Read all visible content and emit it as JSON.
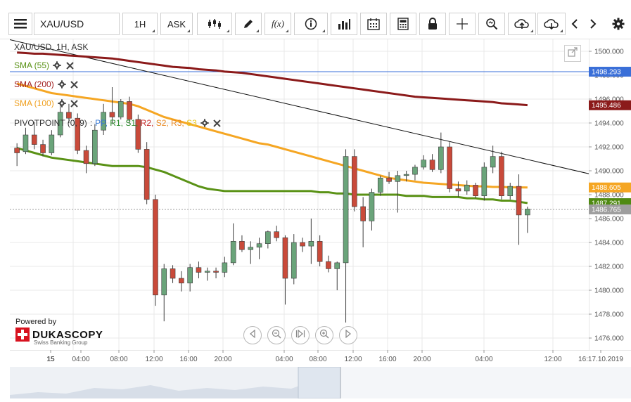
{
  "toolbar": {
    "menu_icon": "hamburger-icon",
    "instrument": "XAU/USD",
    "timeframe": "1H",
    "side": "ASK",
    "tools": [
      {
        "name": "chart-type-icon"
      },
      {
        "name": "draw-pencil-icon"
      },
      {
        "name": "function-icon",
        "label": "f(x)"
      },
      {
        "name": "info-icon"
      },
      {
        "name": "volume-bars-icon"
      },
      {
        "name": "calendar-icon"
      },
      {
        "name": "calculator-icon"
      },
      {
        "name": "lock-icon"
      },
      {
        "name": "crosshair-icon"
      },
      {
        "name": "zoom-search-icon"
      },
      {
        "name": "cloud-upload-icon"
      },
      {
        "name": "cloud-download-icon"
      },
      {
        "name": "arrow-left-icon"
      },
      {
        "name": "arrow-right-icon"
      },
      {
        "name": "settings-gear-icon"
      }
    ]
  },
  "legend": {
    "title": "XAU/USD, 1H, ASK",
    "sma55": "SMA (55)",
    "sma200": "SMA (200)",
    "sma100": "SMA (100)",
    "pivot_prefix": "PIVOTPOINT (0, 9)",
    "pivot_items": [
      {
        "label": "PP",
        "color": "#3a7bd5"
      },
      {
        "label": "R1",
        "color": "#2e8b2e"
      },
      {
        "label": "S1",
        "color": "#2e8b2e"
      },
      {
        "label": "R2",
        "color": "#c62828"
      },
      {
        "label": "S2",
        "color": "#e8871e"
      },
      {
        "label": "R3",
        "color": "#e8871e"
      },
      {
        "label": "S3",
        "color": "#e8c51e"
      }
    ],
    "colors": {
      "sma55": "#5a9216",
      "sma200": "#8b1a1a",
      "sma100": "#f5a623"
    }
  },
  "price_axis": {
    "ticks": [
      "1500.000",
      "1498.000",
      "1496.000",
      "1494.000",
      "1492.000",
      "1490.000",
      "1488.000",
      "1486.000",
      "1484.000",
      "1482.000",
      "1480.000",
      "1478.000",
      "1476.000"
    ],
    "tags": [
      {
        "label": "1498.293",
        "color": "#3a6fd8"
      },
      {
        "label": "1495.486",
        "color": "#8b1a1a"
      },
      {
        "label": "1488.605",
        "color": "#f5a623"
      },
      {
        "label": "1487.291",
        "color": "#4f8a12"
      },
      {
        "label": "1486.765",
        "color": "#9e9e9e"
      }
    ]
  },
  "time_axis": {
    "labels": [
      "15",
      "04:00",
      "08:00",
      "12:00",
      "16:00",
      "20:00",
      "04:00",
      "08:00",
      "12:00",
      "16:00",
      "20:00",
      "04:00",
      "12:00",
      "16:17.10.2019"
    ]
  },
  "branding": {
    "powered": "Powered by",
    "name": "DUKASCOPY",
    "tagline": "Swiss Banking Group"
  },
  "nav_controls": [
    {
      "name": "scroll-left-icon"
    },
    {
      "name": "zoom-out-icon"
    },
    {
      "name": "reset-view-icon"
    },
    {
      "name": "zoom-in-icon"
    },
    {
      "name": "scroll-right-icon"
    }
  ],
  "chart_data": {
    "type": "candlestick",
    "title": "XAU/USD, 1H, ASK",
    "ylim": [
      1475.0,
      1501.0
    ],
    "colors": {
      "up": "#6aa47a",
      "down": "#c94a3a",
      "grid": "#e8e8e8",
      "trendline": "#111111"
    },
    "candles": [
      {
        "o": 1491.9,
        "h": 1492.3,
        "l": 1490.4,
        "c": 1491.5
      },
      {
        "o": 1491.6,
        "h": 1493.6,
        "l": 1491.4,
        "c": 1493.0
      },
      {
        "o": 1493.0,
        "h": 1494.1,
        "l": 1491.8,
        "c": 1492.2
      },
      {
        "o": 1492.2,
        "h": 1492.6,
        "l": 1491.2,
        "c": 1491.5
      },
      {
        "o": 1491.5,
        "h": 1493.4,
        "l": 1491.3,
        "c": 1493.0
      },
      {
        "o": 1493.0,
        "h": 1495.6,
        "l": 1492.8,
        "c": 1494.9
      },
      {
        "o": 1494.9,
        "h": 1495.6,
        "l": 1494.0,
        "c": 1494.4
      },
      {
        "o": 1494.4,
        "h": 1494.8,
        "l": 1491.4,
        "c": 1491.7
      },
      {
        "o": 1491.7,
        "h": 1492.1,
        "l": 1489.8,
        "c": 1490.6
      },
      {
        "o": 1490.6,
        "h": 1493.9,
        "l": 1490.4,
        "c": 1493.4
      },
      {
        "o": 1493.4,
        "h": 1495.6,
        "l": 1493.0,
        "c": 1494.9
      },
      {
        "o": 1494.9,
        "h": 1497.0,
        "l": 1493.9,
        "c": 1494.5
      },
      {
        "o": 1494.5,
        "h": 1496.0,
        "l": 1494.3,
        "c": 1495.8
      },
      {
        "o": 1495.8,
        "h": 1496.2,
        "l": 1494.0,
        "c": 1494.3
      },
      {
        "o": 1494.3,
        "h": 1494.7,
        "l": 1491.5,
        "c": 1491.8
      },
      {
        "o": 1491.8,
        "h": 1492.4,
        "l": 1487.2,
        "c": 1487.6
      },
      {
        "o": 1487.6,
        "h": 1488.0,
        "l": 1478.7,
        "c": 1479.6
      },
      {
        "o": 1479.6,
        "h": 1482.2,
        "l": 1477.4,
        "c": 1481.8
      },
      {
        "o": 1481.8,
        "h": 1482.1,
        "l": 1480.6,
        "c": 1481.0
      },
      {
        "o": 1481.0,
        "h": 1481.6,
        "l": 1479.9,
        "c": 1480.6
      },
      {
        "o": 1480.6,
        "h": 1482.2,
        "l": 1479.9,
        "c": 1481.9
      },
      {
        "o": 1481.9,
        "h": 1482.4,
        "l": 1481.0,
        "c": 1481.5
      },
      {
        "o": 1481.5,
        "h": 1481.9,
        "l": 1480.8,
        "c": 1481.6
      },
      {
        "o": 1481.6,
        "h": 1481.9,
        "l": 1481.0,
        "c": 1481.5
      },
      {
        "o": 1481.5,
        "h": 1482.8,
        "l": 1481.1,
        "c": 1482.3
      },
      {
        "o": 1482.3,
        "h": 1485.6,
        "l": 1482.1,
        "c": 1484.1
      },
      {
        "o": 1484.1,
        "h": 1484.6,
        "l": 1483.2,
        "c": 1483.4
      },
      {
        "o": 1483.4,
        "h": 1484.1,
        "l": 1482.2,
        "c": 1483.6
      },
      {
        "o": 1483.6,
        "h": 1484.4,
        "l": 1482.6,
        "c": 1483.9
      },
      {
        "o": 1483.9,
        "h": 1485.0,
        "l": 1483.5,
        "c": 1484.9
      },
      {
        "o": 1484.9,
        "h": 1485.4,
        "l": 1484.1,
        "c": 1484.4
      },
      {
        "o": 1484.4,
        "h": 1484.6,
        "l": 1478.8,
        "c": 1481.0
      },
      {
        "o": 1481.0,
        "h": 1484.7,
        "l": 1480.5,
        "c": 1484.0
      },
      {
        "o": 1484.0,
        "h": 1484.4,
        "l": 1483.2,
        "c": 1483.7
      },
      {
        "o": 1483.7,
        "h": 1486.0,
        "l": 1482.2,
        "c": 1484.1
      },
      {
        "o": 1484.1,
        "h": 1484.6,
        "l": 1482.0,
        "c": 1482.4
      },
      {
        "o": 1482.4,
        "h": 1482.9,
        "l": 1481.5,
        "c": 1481.8
      },
      {
        "o": 1481.8,
        "h": 1482.4,
        "l": 1480.0,
        "c": 1482.3
      },
      {
        "o": 1482.3,
        "h": 1491.8,
        "l": 1477.3,
        "c": 1491.2
      },
      {
        "o": 1491.2,
        "h": 1491.8,
        "l": 1486.6,
        "c": 1487.0
      },
      {
        "o": 1487.0,
        "h": 1487.8,
        "l": 1483.6,
        "c": 1485.8
      },
      {
        "o": 1485.8,
        "h": 1488.5,
        "l": 1485.0,
        "c": 1488.2
      },
      {
        "o": 1488.2,
        "h": 1489.6,
        "l": 1487.9,
        "c": 1489.4
      },
      {
        "o": 1489.4,
        "h": 1489.9,
        "l": 1488.9,
        "c": 1489.1
      },
      {
        "o": 1489.1,
        "h": 1490.0,
        "l": 1486.5,
        "c": 1489.6
      },
      {
        "o": 1489.6,
        "h": 1490.0,
        "l": 1489.1,
        "c": 1489.7
      },
      {
        "o": 1489.7,
        "h": 1490.5,
        "l": 1489.2,
        "c": 1490.3
      },
      {
        "o": 1490.3,
        "h": 1491.3,
        "l": 1490.1,
        "c": 1490.9
      },
      {
        "o": 1490.9,
        "h": 1491.4,
        "l": 1489.9,
        "c": 1490.1
      },
      {
        "o": 1490.1,
        "h": 1493.2,
        "l": 1489.8,
        "c": 1492.0
      },
      {
        "o": 1492.0,
        "h": 1492.4,
        "l": 1488.2,
        "c": 1488.5
      },
      {
        "o": 1488.5,
        "h": 1489.1,
        "l": 1487.8,
        "c": 1488.3
      },
      {
        "o": 1488.3,
        "h": 1489.2,
        "l": 1488.0,
        "c": 1488.8
      },
      {
        "o": 1488.8,
        "h": 1489.0,
        "l": 1487.7,
        "c": 1487.9
      },
      {
        "o": 1487.9,
        "h": 1490.7,
        "l": 1487.5,
        "c": 1490.3
      },
      {
        "o": 1490.3,
        "h": 1492.1,
        "l": 1489.8,
        "c": 1491.2
      },
      {
        "o": 1491.2,
        "h": 1491.6,
        "l": 1487.6,
        "c": 1487.9
      },
      {
        "o": 1487.9,
        "h": 1489.0,
        "l": 1487.6,
        "c": 1488.7
      },
      {
        "o": 1488.7,
        "h": 1489.7,
        "l": 1483.8,
        "c": 1486.3
      },
      {
        "o": 1486.3,
        "h": 1487.0,
        "l": 1484.8,
        "c": 1486.8
      }
    ],
    "sma55": [
      1491.9,
      1491.7,
      1491.5,
      1491.3,
      1491.1,
      1491.0,
      1490.9,
      1490.8,
      1490.7,
      1490.6,
      1490.5,
      1490.4,
      1490.4,
      1490.4,
      1490.4,
      1490.3,
      1490.1,
      1489.9,
      1489.6,
      1489.3,
      1489.0,
      1488.7,
      1488.5,
      1488.4,
      1488.3,
      1488.3,
      1488.3,
      1488.3,
      1488.3,
      1488.3,
      1488.3,
      1488.3,
      1488.3,
      1488.3,
      1488.3,
      1488.2,
      1488.2,
      1488.1,
      1488.1,
      1488.0,
      1488.0,
      1488.0,
      1488.0,
      1488.0,
      1488.0,
      1487.9,
      1487.9,
      1487.9,
      1487.8,
      1487.8,
      1487.8,
      1487.8,
      1487.7,
      1487.7,
      1487.6,
      1487.6,
      1487.5,
      1487.5,
      1487.4,
      1487.3
    ],
    "sma100": [
      1497.3,
      1497.1,
      1496.9,
      1496.7,
      1496.5,
      1496.4,
      1496.3,
      1496.2,
      1496.1,
      1496.0,
      1495.9,
      1495.8,
      1495.7,
      1495.6,
      1495.4,
      1495.1,
      1494.8,
      1494.5,
      1494.3,
      1494.1,
      1493.9,
      1493.7,
      1493.5,
      1493.3,
      1493.1,
      1492.9,
      1492.7,
      1492.5,
      1492.3,
      1492.2,
      1492.0,
      1491.8,
      1491.6,
      1491.4,
      1491.2,
      1491.0,
      1490.8,
      1490.6,
      1490.4,
      1490.2,
      1490.0,
      1489.8,
      1489.6,
      1489.4,
      1489.3,
      1489.2,
      1489.1,
      1489.0,
      1488.95,
      1488.9,
      1488.85,
      1488.8,
      1488.75,
      1488.7,
      1488.7,
      1488.65,
      1488.65,
      1488.62,
      1488.61,
      1488.6
    ],
    "sma200": [
      1499.9,
      1499.85,
      1499.8,
      1499.8,
      1499.75,
      1499.7,
      1499.65,
      1499.6,
      1499.55,
      1499.5,
      1499.45,
      1499.4,
      1499.3,
      1499.2,
      1499.1,
      1499.0,
      1498.9,
      1498.8,
      1498.7,
      1498.65,
      1498.6,
      1498.5,
      1498.45,
      1498.4,
      1498.3,
      1498.25,
      1498.2,
      1498.1,
      1498.0,
      1497.9,
      1497.8,
      1497.7,
      1497.6,
      1497.5,
      1497.4,
      1497.3,
      1497.2,
      1497.1,
      1497.0,
      1496.9,
      1496.8,
      1496.7,
      1496.6,
      1496.5,
      1496.4,
      1496.3,
      1496.2,
      1496.15,
      1496.1,
      1496.05,
      1496.0,
      1495.95,
      1495.9,
      1495.85,
      1495.8,
      1495.75,
      1495.65,
      1495.6,
      1495.55,
      1495.49
    ],
    "hline_price": 1498.293,
    "last_price_line": 1486.765,
    "trendline": [
      {
        "i": -1,
        "p": 1501.0
      },
      {
        "i": 67,
        "p": 1489.6
      }
    ]
  }
}
